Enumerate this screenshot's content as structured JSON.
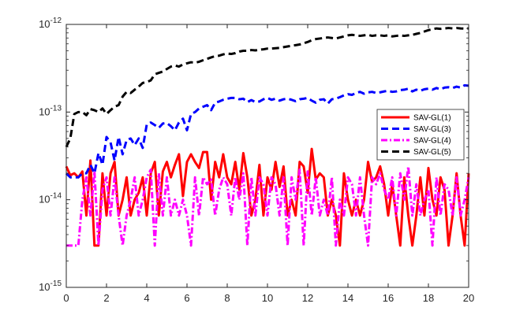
{
  "chart_data": {
    "type": "line",
    "title": "",
    "xlabel": "",
    "ylabel": "",
    "xlim": [
      0,
      20
    ],
    "ylim": [
      1e-15,
      1e-12
    ],
    "yscale": "log",
    "grid": false,
    "legend_position": "right",
    "x_ticks": [
      "0",
      "2",
      "4",
      "6",
      "8",
      "10",
      "12",
      "14",
      "16",
      "18",
      "20"
    ],
    "y_ticks": [
      {
        "base": "10",
        "exp": "-15"
      },
      {
        "base": "10",
        "exp": "-14"
      },
      {
        "base": "10",
        "exp": "-13"
      },
      {
        "base": "10",
        "exp": "-12"
      }
    ],
    "series": [
      {
        "name": "SAV-GL(1)",
        "color": "#ff0000",
        "style": "solid",
        "x": [
          0,
          0.2,
          0.4,
          0.6,
          0.8,
          1,
          1.2,
          1.4,
          1.6,
          1.8,
          2,
          2.2,
          2.4,
          2.6,
          2.8,
          3,
          3.2,
          3.4,
          3.6,
          3.8,
          4,
          4.2,
          4.4,
          4.6,
          4.8,
          5,
          5.2,
          5.4,
          5.6,
          5.8,
          6,
          6.2,
          6.4,
          6.6,
          6.8,
          7,
          7.2,
          7.4,
          7.6,
          7.8,
          8,
          8.2,
          8.4,
          8.6,
          8.8,
          9,
          9.2,
          9.4,
          9.6,
          9.8,
          10,
          10.2,
          10.4,
          10.6,
          10.8,
          11,
          11.2,
          11.4,
          11.6,
          11.8,
          12,
          12.2,
          12.4,
          12.6,
          12.8,
          13,
          13.2,
          13.4,
          13.6,
          13.8,
          14,
          14.2,
          14.4,
          14.6,
          14.8,
          15,
          15.2,
          15.4,
          15.6,
          15.8,
          16,
          16.2,
          16.4,
          16.6,
          16.8,
          17,
          17.2,
          17.4,
          17.6,
          17.8,
          18,
          18.2,
          18.4,
          18.6,
          18.8,
          19,
          19.2,
          19.4,
          19.6,
          19.8,
          20
        ],
        "values": [
          2.4e-14,
          1.9e-14,
          2e-14,
          1.8e-14,
          2.1e-14,
          6.6e-15,
          2.8e-14,
          3e-15,
          3e-15,
          2e-14,
          6.6e-15,
          2e-14,
          2.7e-14,
          6.6e-15,
          1e-14,
          1.8e-14,
          6.6e-15,
          1e-14,
          1.2e-14,
          1.8e-14,
          6.6e-15,
          2e-14,
          2.7e-14,
          6.6e-15,
          2.1e-14,
          2.7e-14,
          1.8e-14,
          2.5e-14,
          3.3e-14,
          1.1e-14,
          2.7e-14,
          3.3e-14,
          2.7e-14,
          2.3e-14,
          3.5e-14,
          3.5e-14,
          1e-14,
          2.7e-14,
          1.8e-14,
          3.3e-14,
          1.8e-14,
          1.5e-14,
          2.7e-14,
          1.3e-14,
          3.4e-14,
          1.8e-14,
          6.6e-15,
          1e-14,
          2.5e-14,
          6.6e-15,
          1.8e-14,
          1.3e-14,
          2.7e-14,
          1.4e-14,
          2.4e-14,
          6.6e-15,
          1e-14,
          6.6e-15,
          2.7e-14,
          2.4e-14,
          1.2e-14,
          3.8e-14,
          1.7e-14,
          2e-14,
          1.8e-14,
          6.6e-15,
          1e-14,
          6.6e-15,
          3e-15,
          2e-14,
          1e-14,
          6.6e-15,
          1e-14,
          6.6e-15,
          1e-14,
          2.7e-14,
          1.6e-14,
          1.8e-14,
          2.4e-14,
          1.5e-14,
          6.6e-15,
          1.5e-14,
          6.6e-15,
          3e-15,
          1.8e-14,
          6.6e-15,
          3e-15,
          6.6e-15,
          1.8e-14,
          6.6e-15,
          2.3e-14,
          1e-14,
          6.6e-15,
          1.8e-14,
          1.3e-14,
          3e-15,
          6.6e-15,
          2e-14,
          6.6e-15,
          3e-15,
          2e-14
        ]
      },
      {
        "name": "SAV-GL(3)",
        "color": "#0000ff",
        "style": "dashed",
        "x": [
          0,
          0.2,
          0.4,
          0.6,
          0.8,
          1,
          1.2,
          1.4,
          1.6,
          1.8,
          2,
          2.2,
          2.4,
          2.6,
          2.8,
          3,
          3.2,
          3.4,
          3.6,
          3.8,
          4,
          4.2,
          4.4,
          4.6,
          4.8,
          5,
          5.2,
          5.4,
          5.6,
          5.8,
          6,
          6.2,
          6.4,
          6.6,
          6.8,
          7,
          7.2,
          7.4,
          7.6,
          7.8,
          8,
          8.2,
          8.4,
          8.6,
          8.8,
          9,
          9.2,
          9.4,
          9.6,
          9.8,
          10,
          10.2,
          10.4,
          10.6,
          10.8,
          11,
          11.2,
          11.4,
          11.6,
          11.8,
          12,
          12.2,
          12.4,
          12.6,
          12.8,
          13,
          13.2,
          13.4,
          13.6,
          13.8,
          14,
          14.2,
          14.4,
          14.6,
          14.8,
          15,
          15.2,
          15.4,
          15.6,
          15.8,
          16,
          16.2,
          16.4,
          16.6,
          16.8,
          17,
          17.2,
          17.4,
          17.6,
          17.8,
          18,
          18.2,
          18.4,
          18.6,
          18.8,
          19,
          19.2,
          19.4,
          19.6,
          19.8,
          20
        ],
        "values": [
          2e-14,
          1.8e-14,
          1.8e-14,
          1.8e-14,
          2e-14,
          2e-14,
          2.5e-14,
          2e-14,
          3.4e-14,
          2.5e-14,
          5.2e-14,
          4.5e-14,
          2.8e-14,
          5.2e-14,
          3.3e-14,
          4.8e-14,
          5e-14,
          4.2e-14,
          5e-14,
          3.9e-14,
          7.2e-14,
          7.6e-14,
          7.1e-14,
          6.6e-14,
          7.4e-14,
          7.5e-14,
          6.9e-14,
          6.2e-14,
          7.6e-14,
          8.4e-14,
          6.2e-14,
          9.5e-14,
          1e-13,
          1.1e-13,
          1.15e-13,
          1.2e-13,
          1.05e-13,
          1.28e-13,
          1.32e-13,
          1.38e-13,
          1.42e-13,
          1.45e-13,
          1.45e-13,
          1.4e-13,
          1.42e-13,
          1.3e-13,
          1.37e-13,
          1.3e-13,
          1.32e-13,
          1.4e-13,
          1.45e-13,
          1.38e-13,
          1.42e-13,
          1.35e-13,
          1.4e-13,
          1.42e-13,
          1.38e-13,
          1.33e-13,
          1.4e-13,
          1.42e-13,
          1.45e-13,
          1.35e-13,
          1.28e-13,
          1.38e-13,
          1.4e-13,
          1.25e-13,
          1.4e-13,
          1.42e-13,
          1.48e-13,
          1.55e-13,
          1.6e-13,
          1.57e-13,
          1.65e-13,
          1.7e-13,
          1.62e-13,
          1.68e-13,
          1.7e-13,
          1.65e-13,
          1.68e-13,
          1.72e-13,
          1.75e-13,
          1.7e-13,
          1.72e-13,
          1.78e-13,
          1.8e-13,
          1.85e-13,
          1.72e-13,
          1.8e-13,
          1.75e-13,
          1.82e-13,
          1.85e-13,
          1.8e-13,
          1.88e-13,
          1.82e-13,
          1.9e-13,
          1.92e-13,
          1.88e-13,
          1.95e-13,
          1.9e-13,
          2.02e-13,
          2e-13
        ]
      },
      {
        "name": "SAV-GL(4)",
        "color": "#ff00ff",
        "style": "dashdot",
        "x": [
          0,
          0.2,
          0.4,
          0.6,
          0.8,
          1,
          1.2,
          1.4,
          1.6,
          1.8,
          2,
          2.2,
          2.4,
          2.6,
          2.8,
          3,
          3.2,
          3.4,
          3.6,
          3.8,
          4,
          4.2,
          4.4,
          4.6,
          4.8,
          5,
          5.2,
          5.4,
          5.6,
          5.8,
          6,
          6.2,
          6.4,
          6.6,
          6.8,
          7,
          7.2,
          7.4,
          7.6,
          7.8,
          8,
          8.2,
          8.4,
          8.6,
          8.8,
          9,
          9.2,
          9.4,
          9.6,
          9.8,
          10,
          10.2,
          10.4,
          10.6,
          10.8,
          11,
          11.2,
          11.4,
          11.6,
          11.8,
          12,
          12.2,
          12.4,
          12.6,
          12.8,
          13,
          13.2,
          13.4,
          13.6,
          13.8,
          14,
          14.2,
          14.4,
          14.6,
          14.8,
          15,
          15.2,
          15.4,
          15.6,
          15.8,
          16,
          16.2,
          16.4,
          16.6,
          16.8,
          17,
          17.2,
          17.4,
          17.6,
          17.8,
          18,
          18.2,
          18.4,
          18.6,
          18.8,
          19,
          19.2,
          19.4,
          19.6,
          19.8,
          20
        ],
        "values": [
          3e-15,
          3e-15,
          3e-15,
          3e-15,
          1e-14,
          1.8e-14,
          6.6e-15,
          2.1e-14,
          3e-15,
          1.3e-14,
          1.8e-14,
          6.6e-15,
          1.8e-14,
          6.6e-15,
          3e-15,
          6.6e-15,
          1e-14,
          1.8e-14,
          6.6e-15,
          1e-14,
          1.8e-14,
          2.2e-14,
          3e-15,
          2e-14,
          6.6e-15,
          1.8e-14,
          6.6e-15,
          1e-14,
          6.6e-15,
          1e-14,
          6.6e-15,
          3e-15,
          1.8e-14,
          6.6e-15,
          1.8e-14,
          1.5e-14,
          1.7e-14,
          6.6e-15,
          1.3e-14,
          1.8e-14,
          1.5e-14,
          6.6e-15,
          1.8e-14,
          1e-14,
          2e-14,
          3e-15,
          1.8e-14,
          6.6e-15,
          1.8e-14,
          1.5e-14,
          6.6e-15,
          1.8e-14,
          1.5e-14,
          6.6e-15,
          1.8e-14,
          3e-15,
          1.8e-14,
          1e-14,
          2.2e-14,
          3e-15,
          2.1e-14,
          6.6e-15,
          1.8e-14,
          6.6e-15,
          1e-14,
          6.6e-15,
          1.8e-14,
          3e-15,
          1e-14,
          6.6e-15,
          1.8e-14,
          1.5e-14,
          6.6e-15,
          1.8e-14,
          6.6e-15,
          3e-15,
          1.8e-14,
          1.5e-14,
          2e-14,
          1.3e-14,
          1e-14,
          1.8e-14,
          6.6e-15,
          2e-14,
          1e-14,
          2.4e-14,
          6.6e-15,
          1.5e-14,
          6.6e-15,
          1e-14,
          1.3e-14,
          3e-15,
          1.8e-14,
          6.6e-15,
          1.5e-14,
          1.3e-14,
          6.6e-15,
          1.8e-14,
          6.6e-15,
          1e-14,
          1.8e-14
        ]
      },
      {
        "name": "SAV-GL(5)",
        "color": "#000000",
        "style": "dashed",
        "x": [
          0,
          0.2,
          0.4,
          0.6,
          0.8,
          1,
          1.2,
          1.4,
          1.6,
          1.8,
          2,
          2.2,
          2.4,
          2.6,
          2.8,
          3,
          3.2,
          3.4,
          3.6,
          3.8,
          4,
          4.2,
          4.4,
          4.6,
          4.8,
          5,
          5.2,
          5.4,
          5.6,
          5.8,
          6,
          6.2,
          6.4,
          6.6,
          6.8,
          7,
          7.2,
          7.4,
          7.6,
          7.8,
          8,
          8.2,
          8.4,
          8.6,
          8.8,
          9,
          9.2,
          9.4,
          9.6,
          9.8,
          10,
          10.2,
          10.4,
          10.6,
          10.8,
          11,
          11.2,
          11.4,
          11.6,
          11.8,
          12,
          12.2,
          12.4,
          12.6,
          12.8,
          13,
          13.2,
          13.4,
          13.6,
          13.8,
          14,
          14.2,
          14.4,
          14.6,
          14.8,
          15,
          15.2,
          15.4,
          15.6,
          15.8,
          16,
          16.2,
          16.4,
          16.6,
          16.8,
          17,
          17.2,
          17.4,
          17.6,
          17.8,
          18,
          18.2,
          18.4,
          18.6,
          18.8,
          19,
          19.2,
          19.4,
          19.6,
          19.8,
          20
        ],
        "values": [
          4e-14,
          5e-14,
          9.5e-14,
          1e-13,
          1e-13,
          9.2e-14,
          1.08e-13,
          1.05e-13,
          1e-13,
          1.1e-13,
          9.5e-14,
          1.05e-13,
          1.15e-13,
          1.2e-13,
          1.5e-13,
          1.7e-13,
          1.65e-13,
          1.8e-13,
          1.95e-13,
          2.15e-13,
          2.2e-13,
          2.3e-13,
          2.7e-13,
          2.8e-13,
          2.9e-13,
          3.1e-13,
          3.3e-13,
          3.4e-13,
          3.3e-13,
          3.5e-13,
          3.6e-13,
          3.7e-13,
          3.65e-13,
          3.75e-13,
          3.9e-13,
          4.05e-13,
          4.2e-13,
          4.35e-13,
          4.4e-13,
          4.55e-13,
          4.65e-13,
          4.6e-13,
          4.7e-13,
          4.9e-13,
          5e-13,
          5e-13,
          5.1e-13,
          5.05e-13,
          5.15e-13,
          5.2e-13,
          5.3e-13,
          5.3e-13,
          5.35e-13,
          5.4e-13,
          5.5e-13,
          5.6e-13,
          5.7e-13,
          5.8e-13,
          5.9e-13,
          6.1e-13,
          6.3e-13,
          6.6e-13,
          6.8e-13,
          6.9e-13,
          7e-13,
          7.1e-13,
          7e-13,
          6.9e-13,
          7.1e-13,
          7.3e-13,
          7.5e-13,
          7.6e-13,
          7.5e-13,
          7.4e-13,
          7.5e-13,
          7.6e-13,
          7.4e-13,
          7.5e-13,
          7.5e-13,
          7.4e-13,
          7.5e-13,
          7.3e-13,
          7.4e-13,
          7.5e-13,
          7.4e-13,
          7.5e-13,
          7.6e-13,
          7.8e-13,
          8e-13,
          8.3e-13,
          8.6e-13,
          8.8e-13,
          9e-13,
          8.9e-13,
          9e-13,
          9.1e-13,
          9e-13,
          9.1e-13,
          9e-13,
          8.95e-13,
          9e-13
        ]
      }
    ]
  }
}
